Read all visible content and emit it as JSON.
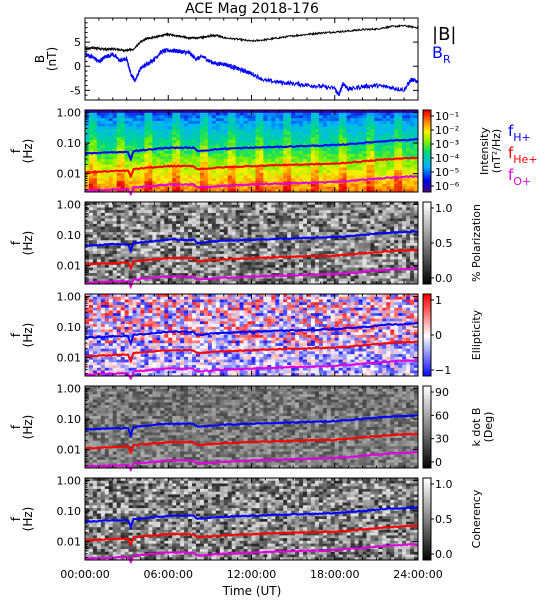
{
  "title": "ACE Mag 2018-176",
  "chart_data": [
    {
      "type": "line",
      "ylabel": "B\n(nT)",
      "ylim": [
        -7,
        10
      ],
      "yticks": [
        5,
        0,
        -5
      ],
      "legend": [
        "|B|",
        "B_R"
      ],
      "series": [
        {
          "name": "|B|",
          "color": "#000000",
          "x": [
            0,
            0.5,
            1,
            1.5,
            2,
            2.5,
            3,
            3.5,
            4,
            4.5,
            5,
            5.5,
            6,
            6.5,
            7,
            7.5,
            8,
            8.5,
            9,
            9.5,
            10,
            11,
            12,
            13,
            14,
            15,
            16,
            17,
            18,
            19,
            20,
            21,
            22,
            23,
            24
          ],
          "y": [
            3.5,
            3.8,
            3.7,
            3.5,
            3.6,
            3.4,
            3.3,
            3.5,
            5.0,
            5.8,
            6.0,
            6.3,
            6.6,
            6.4,
            6.2,
            5.8,
            5.9,
            6.0,
            6.3,
            6.4,
            5.9,
            5.6,
            5.2,
            5.5,
            5.9,
            6.3,
            6.6,
            6.9,
            7.1,
            7.3,
            7.6,
            7.7,
            8.2,
            8.4,
            8.0
          ]
        },
        {
          "name": "B_R",
          "color": "#0000ff",
          "x": [
            0,
            0.5,
            1,
            1.5,
            2,
            2.5,
            3,
            3.3,
            3.6,
            4,
            4.5,
            5,
            5.5,
            6,
            6.5,
            7,
            7.5,
            8,
            8.5,
            9,
            9.5,
            10,
            10.5,
            11,
            11.5,
            12,
            13,
            14,
            15,
            16,
            17,
            18,
            18.3,
            18.6,
            19,
            20,
            21,
            22,
            23,
            23.5,
            24
          ],
          "y": [
            2.5,
            2.0,
            1.0,
            2.0,
            2.5,
            1.2,
            1.5,
            -1.5,
            -3.0,
            -0.5,
            0.5,
            1.5,
            3.0,
            3.3,
            3.2,
            3.0,
            2.8,
            1.5,
            2.0,
            1.0,
            0.5,
            0.5,
            0.0,
            -0.5,
            -1.0,
            -1.5,
            -3.0,
            -3.3,
            -3.6,
            -3.9,
            -4.2,
            -4.6,
            -6.0,
            -3.5,
            -4.8,
            -4.2,
            -4.0,
            -4.4,
            -4.9,
            -2.8,
            -3.2
          ]
        }
      ]
    },
    {
      "type": "heatmap",
      "ylabel": "f\n(Hz)",
      "yticks": [
        "1.00",
        "0.10",
        "0.01"
      ],
      "colorbar": {
        "label": "Intensity\n(nT²/Hz)",
        "ticks": [
          "10⁻¹",
          "10⁻²",
          "10⁻³",
          "10⁻⁴",
          "10⁻⁵",
          "10⁻⁶"
        ],
        "palette": "rainbow"
      },
      "legend": [
        "f_H+",
        "f_He+",
        "f_O+"
      ]
    },
    {
      "type": "heatmap",
      "ylabel": "f\n(Hz)",
      "yticks": [
        "1.00",
        "0.10",
        "0.01"
      ],
      "colorbar": {
        "label": "% Polarization",
        "ticks": [
          "1.0",
          "0.5",
          "0.0"
        ],
        "palette": "gray"
      }
    },
    {
      "type": "heatmap",
      "ylabel": "f\n(Hz)",
      "yticks": [
        "1.00",
        "0.10",
        "0.01"
      ],
      "colorbar": {
        "label": "Ellipticity",
        "ticks": [
          "1",
          "0",
          "−1"
        ],
        "palette": "bluered"
      }
    },
    {
      "type": "heatmap",
      "ylabel": "f\n(Hz)",
      "yticks": [
        "1.00",
        "0.10",
        "0.01"
      ],
      "colorbar": {
        "label": "k dot B\n(Deg)",
        "ticks": [
          "90",
          "60",
          "30",
          "0"
        ],
        "palette": "gray"
      }
    },
    {
      "type": "heatmap",
      "ylabel": "f\n(Hz)",
      "yticks": [
        "1.00",
        "0.10",
        "0.01"
      ],
      "colorbar": {
        "label": "Coherency",
        "ticks": [
          "1.0",
          "0.5",
          "0.0"
        ],
        "palette": "gray"
      }
    }
  ],
  "gyro_lines": {
    "H": {
      "color": "#0000ff",
      "x": [
        0,
        2,
        3.1,
        3.3,
        3.5,
        6,
        7.8,
        8.1,
        10,
        12,
        14,
        16,
        18,
        20,
        22,
        24
      ],
      "y": [
        0.045,
        0.05,
        0.05,
        0.03,
        0.055,
        0.07,
        0.07,
        0.055,
        0.065,
        0.07,
        0.075,
        0.08,
        0.085,
        0.1,
        0.12,
        0.13
      ]
    },
    "He": {
      "color": "#ff0000",
      "x": [
        0,
        2,
        3.1,
        3.3,
        3.5,
        6,
        7.8,
        8.1,
        10,
        12,
        14,
        16,
        18,
        20,
        22,
        24
      ],
      "y": [
        0.011,
        0.012,
        0.0125,
        0.008,
        0.014,
        0.0175,
        0.0175,
        0.014,
        0.016,
        0.0175,
        0.019,
        0.02,
        0.021,
        0.025,
        0.03,
        0.033
      ]
    },
    "O": {
      "color": "#e000e0",
      "x": [
        0,
        2,
        3.1,
        3.3,
        3.5,
        6,
        7.8,
        8.1,
        10,
        12,
        14,
        16,
        18,
        20,
        22,
        24
      ],
      "y": [
        0.0028,
        0.003,
        0.0031,
        0.0021,
        0.0035,
        0.0044,
        0.0044,
        0.0035,
        0.004,
        0.0044,
        0.0047,
        0.005,
        0.0053,
        0.0062,
        0.0075,
        0.0082
      ]
    }
  },
  "xaxis": {
    "label": "Time (UT)",
    "ticks": [
      "00:00:00",
      "06:00:00",
      "12:00:00",
      "18:00:00",
      "24:00:00"
    ],
    "xlim": [
      0,
      24
    ]
  }
}
